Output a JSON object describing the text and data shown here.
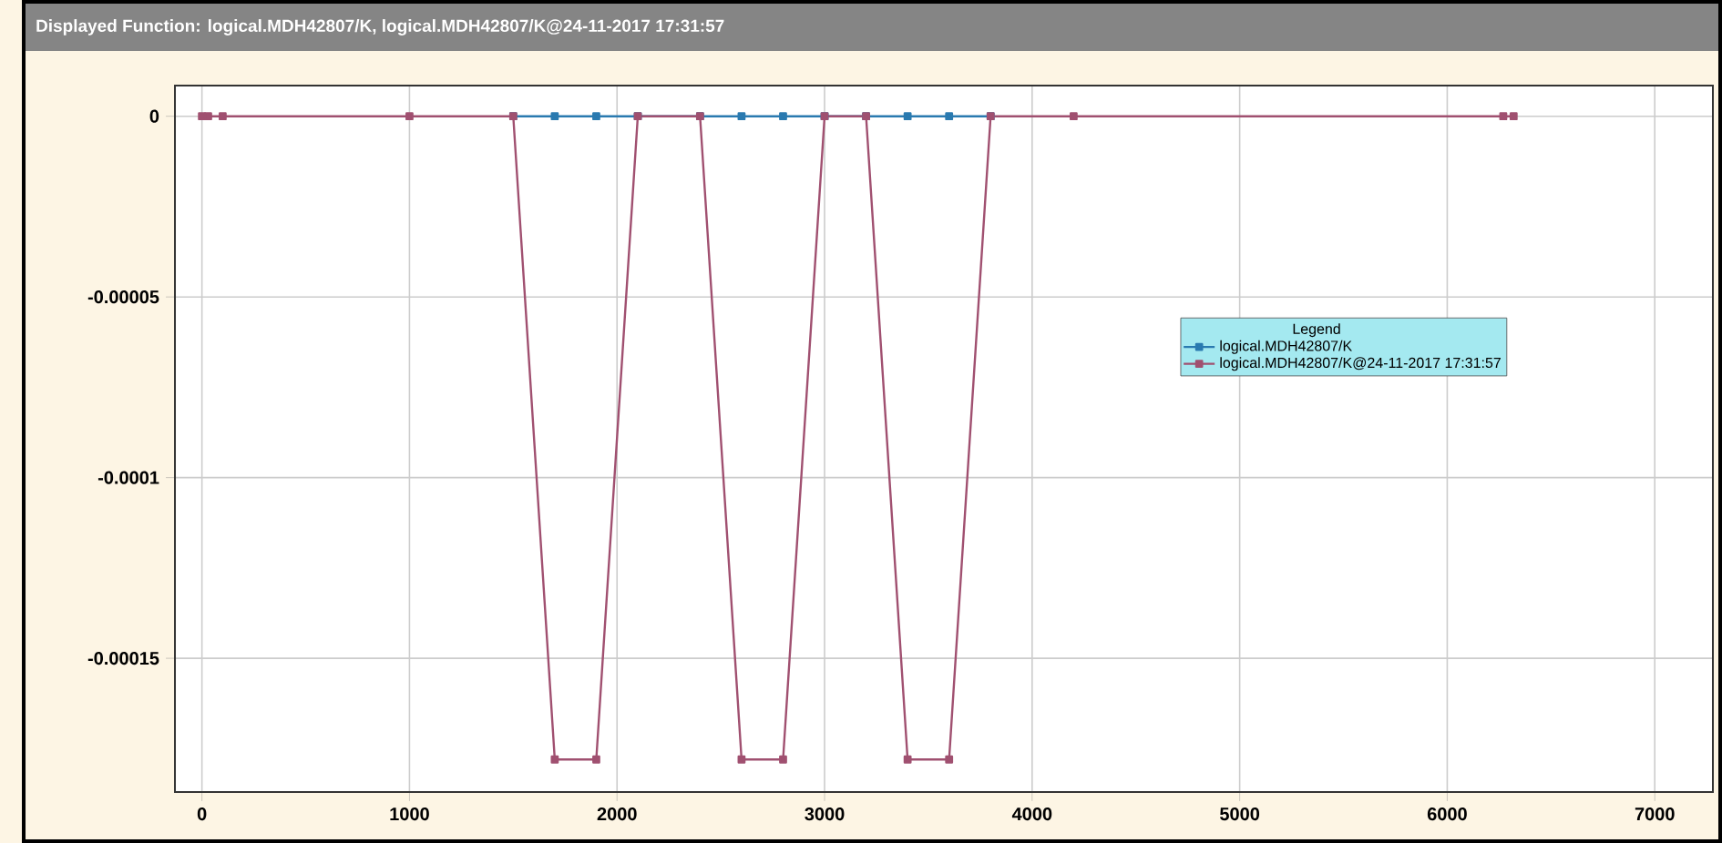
{
  "chart_data": {
    "type": "line",
    "title": "Displayed Function: logical.MDH42807/K, logical.MDH42807/K@24-11-2017 17:31:57",
    "legend_title": "Legend",
    "x": [
      0,
      30,
      100,
      1000,
      1500,
      1700,
      1900,
      2100,
      2400,
      2600,
      2800,
      3000,
      3200,
      3400,
      3600,
      3800,
      4200,
      6270,
      6320
    ],
    "series": [
      {
        "name": "logical.MDH42807/K",
        "color": "#2a7ab0",
        "x": [
          1500,
          1700,
          1900,
          2100,
          2400,
          2600,
          2800,
          3000,
          3200,
          3400,
          3600,
          3800
        ],
        "values": [
          0,
          0,
          0,
          0,
          0,
          0,
          0,
          0,
          0,
          0,
          0,
          0
        ]
      },
      {
        "name": "logical.MDH42807/K@24-11-2017 17:31:57",
        "color": "#a05070",
        "values": [
          0,
          0,
          0,
          0,
          0,
          -0.000178,
          -0.000178,
          0,
          0,
          -0.000178,
          -0.000178,
          0,
          0,
          -0.000178,
          -0.000178,
          0,
          0,
          0,
          0
        ]
      }
    ],
    "xlim": [
      -130,
      7280
    ],
    "ylim": [
      -0.000187,
      8.5e-06
    ],
    "xticks": [
      0,
      1000,
      2000,
      3000,
      4000,
      5000,
      6000,
      7000
    ],
    "yticks": [
      0,
      {
        "value": -5e-05,
        "label": "-0.00005"
      },
      {
        "value": -0.0001,
        "label": "-0.0001"
      },
      {
        "value": -0.00015,
        "label": "-0.00015"
      }
    ],
    "grid": true,
    "legend": "right",
    "marker": "square",
    "line_style": "solid"
  }
}
